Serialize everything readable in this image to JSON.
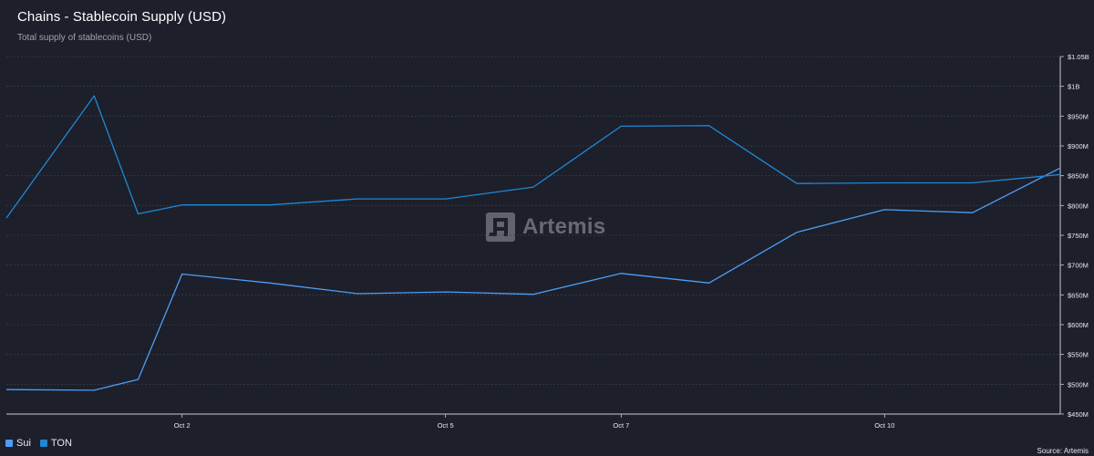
{
  "header": {
    "title": "Chains - Stablecoin Supply (USD)",
    "subtitle": "Total supply of stablecoins (USD)"
  },
  "watermark": {
    "text": "Artemis"
  },
  "footer": {
    "source": "Source: Artemis"
  },
  "chart_data": {
    "type": "line",
    "x": [
      "Sep 30",
      "Oct 1",
      "Oct 2",
      "Oct 3",
      "Oct 4",
      "Oct 5",
      "Oct 6",
      "Oct 7",
      "Oct 8",
      "Oct 9",
      "Oct 10",
      "Oct 11",
      "Oct 12"
    ],
    "x_tick_labels": [
      "Oct 2",
      "Oct 5",
      "Oct 7",
      "Oct 10"
    ],
    "y_tick_labels": [
      "$1.05B",
      "$1B",
      "$950M",
      "$900M",
      "$850M",
      "$800M",
      "$750M",
      "$700M",
      "$650M",
      "$600M",
      "$550M",
      "$500M",
      "$450M"
    ],
    "y_ticks": [
      1050000000,
      1000000000,
      950000000,
      900000000,
      850000000,
      800000000,
      750000000,
      700000000,
      650000000,
      600000000,
      550000000,
      500000000,
      450000000
    ],
    "ylim": [
      450000000,
      1050000000
    ],
    "y_axis_side": "right",
    "grid": true,
    "legend_position": "bottom-left",
    "series": [
      {
        "name": "Sui",
        "color": "#4a9ff5",
        "points": [
          [
            "Sep 30",
            491000000
          ],
          [
            "Oct 1",
            490000000
          ],
          [
            "Oct 1",
            508000000
          ],
          [
            "Oct 2",
            685000000
          ],
          [
            "Oct 3",
            670000000
          ],
          [
            "Oct 4",
            652000000
          ],
          [
            "Oct 5",
            655000000
          ],
          [
            "Oct 6",
            651000000
          ],
          [
            "Oct 7",
            686000000
          ],
          [
            "Oct 8",
            670000000
          ],
          [
            "Oct 9",
            755000000
          ],
          [
            "Oct 10",
            793000000
          ],
          [
            "Oct 11",
            788000000
          ],
          [
            "Oct 12",
            863000000
          ]
        ]
      },
      {
        "name": "TON",
        "color": "#1e88d6",
        "points": [
          [
            "Sep 30",
            779000000
          ],
          [
            "Oct 1",
            984000000
          ],
          [
            "Oct 1",
            786000000
          ],
          [
            "Oct 2",
            801000000
          ],
          [
            "Oct 3",
            801000000
          ],
          [
            "Oct 4",
            811000000
          ],
          [
            "Oct 5",
            811000000
          ],
          [
            "Oct 6",
            831000000
          ],
          [
            "Oct 7",
            933000000
          ],
          [
            "Oct 8",
            934000000
          ],
          [
            "Oct 9",
            837000000
          ],
          [
            "Oct 10",
            838000000
          ],
          [
            "Oct 11",
            838000000
          ],
          [
            "Oct 12",
            852000000
          ]
        ]
      }
    ]
  }
}
